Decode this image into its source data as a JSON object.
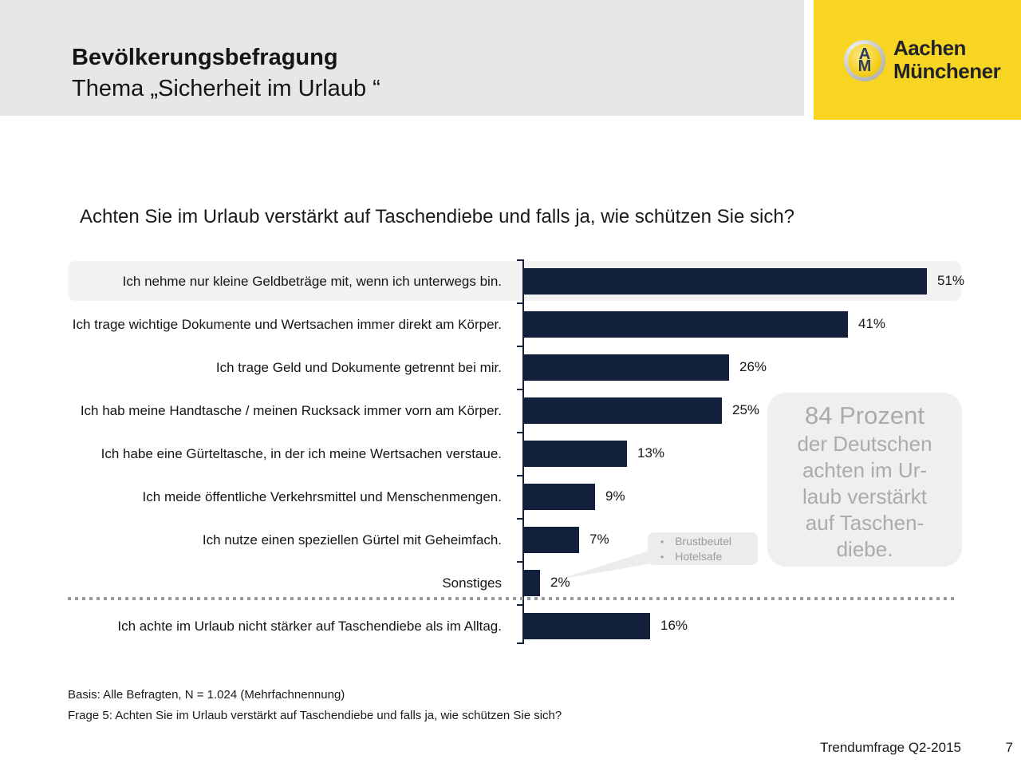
{
  "header": {
    "title": "Bevölkerungsbefragung",
    "subtitle": "Thema „Sicherheit im Urlaub “"
  },
  "logo": {
    "monogram_top": "A",
    "monogram_bottom": "M",
    "name_line1": "Aachen",
    "name_line2": "Münchener",
    "background_color": "#f8d523"
  },
  "chart_data": {
    "type": "bar",
    "orientation": "horizontal",
    "title": "Achten Sie im Urlaub verstärkt auf Taschendiebe und falls ja, wie schützen Sie sich?",
    "categories": [
      "Ich nehme nur kleine Geldbeträge mit, wenn ich unterwegs bin.",
      "Ich trage wichtige Dokumente und Wertsachen immer direkt am Körper.",
      "Ich trage Geld und Dokumente getrennt bei mir.",
      "Ich hab meine Handtasche / meinen Rucksack immer vorn am Körper.",
      "Ich habe eine Gürteltasche, in der ich meine Wertsachen verstaue.",
      "Ich meide öffentliche Verkehrsmittel und Menschenmengen.",
      "Ich nutze einen speziellen Gürtel mit Geheimfach.",
      "Sonstiges",
      "Ich achte im Urlaub nicht stärker auf Taschendiebe als im Alltag."
    ],
    "values": [
      51,
      41,
      26,
      25,
      13,
      9,
      7,
      2,
      16
    ],
    "value_labels": [
      "51%",
      "41%",
      "26%",
      "25%",
      "13%",
      "9%",
      "7%",
      "2%",
      "16%"
    ],
    "xlim": [
      0,
      51
    ],
    "bar_color": "#13203b",
    "highlighted_index": 0,
    "separator_before_index": 8,
    "grid": false,
    "legend": false,
    "callout": {
      "attached_to": "Sonstiges",
      "items": [
        "Brustbeutel",
        "Hotelsafe"
      ]
    },
    "annotation": {
      "headline": "84 Prozent",
      "lines": [
        "der Deutschen",
        "achten im Ur-",
        "laub verstärkt",
        "auf Taschen-",
        "diebe."
      ]
    }
  },
  "footer": {
    "basis": "Basis: Alle Befragten, N = 1.024 (Mehrfachnennung)",
    "frage": "Frage 5: Achten Sie im Urlaub verstärkt auf Taschendiebe und falls ja, wie schützen Sie sich?",
    "source": "Trendumfrage Q2-2015",
    "page_number": "7"
  }
}
